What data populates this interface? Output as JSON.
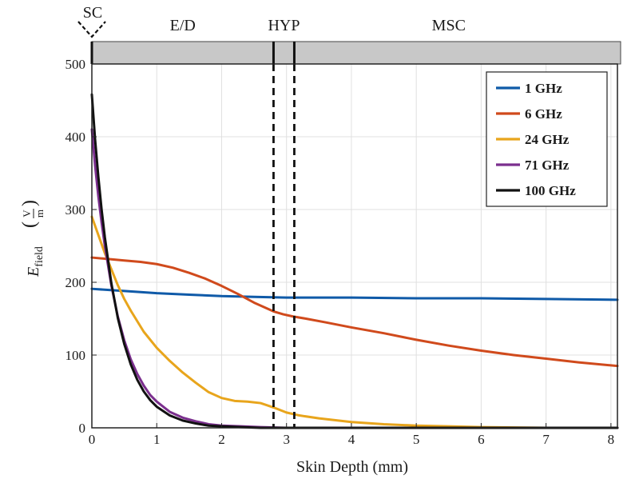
{
  "chart_data": {
    "type": "line",
    "xlabel": "Skin Depth  (mm)",
    "ylabel_symbol": "E",
    "ylabel_subscript": "field",
    "ylabel_unit_num": "V",
    "ylabel_unit_den": "m",
    "xlim": [
      0,
      8.1
    ],
    "ylim": [
      0,
      500
    ],
    "xticks": [
      0,
      1,
      2,
      3,
      4,
      5,
      6,
      7,
      8
    ],
    "yticks": [
      0,
      100,
      200,
      300,
      400,
      500
    ],
    "grid": true,
    "legend_position": "top-right",
    "regions": [
      {
        "label": "SC",
        "start": 0,
        "end": 0.05
      },
      {
        "label": "E/D",
        "start": 0.05,
        "end": 2.8
      },
      {
        "label": "HYP",
        "start": 2.8,
        "end": 3.12
      },
      {
        "label": "MSC",
        "start": 3.12,
        "end": 8.1
      }
    ],
    "boundaries": [
      2.8,
      3.12
    ],
    "series": [
      {
        "name": "1 GHz",
        "color": "#0f5aa8",
        "x": [
          0,
          0.5,
          1,
          1.5,
          2,
          2.5,
          3,
          3.5,
          4,
          5,
          6,
          7,
          8.1
        ],
        "y": [
          191,
          188,
          185,
          183,
          181,
          180,
          179,
          179,
          179,
          178,
          178,
          177,
          176
        ]
      },
      {
        "name": "6 GHz",
        "color": "#d04a1c",
        "x": [
          0,
          0.25,
          0.5,
          0.75,
          1,
          1.25,
          1.5,
          1.75,
          2,
          2.25,
          2.5,
          2.7,
          2.8,
          2.95,
          3.1,
          3.3,
          3.6,
          4,
          4.5,
          5,
          5.5,
          6,
          6.5,
          7,
          7.5,
          8.1
        ],
        "y": [
          234,
          232,
          230,
          228,
          225,
          220,
          213,
          205,
          195,
          184,
          172,
          164,
          160,
          156,
          153,
          150,
          145,
          138,
          130,
          121,
          113,
          106,
          100,
          95,
          90,
          85
        ]
      },
      {
        "name": "24 GHz",
        "color": "#e8a51c",
        "x": [
          0,
          0.1,
          0.2,
          0.3,
          0.4,
          0.5,
          0.6,
          0.8,
          1,
          1.2,
          1.4,
          1.6,
          1.8,
          2,
          2.2,
          2.4,
          2.6,
          2.8,
          3,
          3.2,
          3.5,
          4,
          4.5,
          5,
          5.5,
          6,
          7,
          8.1
        ],
        "y": [
          290,
          265,
          240,
          218,
          196,
          177,
          161,
          132,
          110,
          92,
          76,
          62,
          49,
          41,
          37,
          36,
          34,
          28,
          21,
          17,
          13,
          8,
          5,
          3,
          2,
          1,
          0,
          0
        ]
      },
      {
        "name": "71 GHz",
        "color": "#7b2f8e",
        "x": [
          0,
          0.05,
          0.1,
          0.15,
          0.2,
          0.3,
          0.4,
          0.5,
          0.6,
          0.7,
          0.8,
          0.9,
          1,
          1.2,
          1.4,
          1.6,
          1.8,
          2,
          2.3,
          2.6,
          3,
          4,
          5,
          6,
          7,
          8.1
        ],
        "y": [
          410,
          360,
          318,
          282,
          250,
          196,
          153,
          120,
          94,
          74,
          58,
          45,
          36,
          22,
          14,
          9,
          5,
          3,
          2,
          1,
          0,
          0,
          0,
          0,
          0,
          0
        ]
      },
      {
        "name": "100 GHz",
        "color": "#111111",
        "x": [
          0,
          0.05,
          0.1,
          0.15,
          0.2,
          0.3,
          0.4,
          0.5,
          0.6,
          0.7,
          0.8,
          0.9,
          1,
          1.2,
          1.4,
          1.6,
          1.8,
          2,
          2.3,
          2.6,
          3,
          4,
          5,
          6,
          7,
          8.1
        ],
        "y": [
          458,
          396,
          345,
          300,
          262,
          199,
          151,
          115,
          87,
          66,
          50,
          38,
          29,
          17,
          10,
          6,
          3,
          2,
          1,
          0,
          0,
          0,
          0,
          0,
          0,
          0
        ]
      }
    ]
  }
}
